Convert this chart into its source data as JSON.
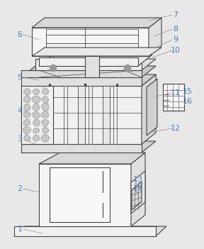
{
  "bg": "#e8e8e8",
  "lc": "#444444",
  "lw": 0.8,
  "label_color": "#4a7fbf",
  "fs": 8,
  "fig_w": 2.88,
  "fig_h": 3.51
}
